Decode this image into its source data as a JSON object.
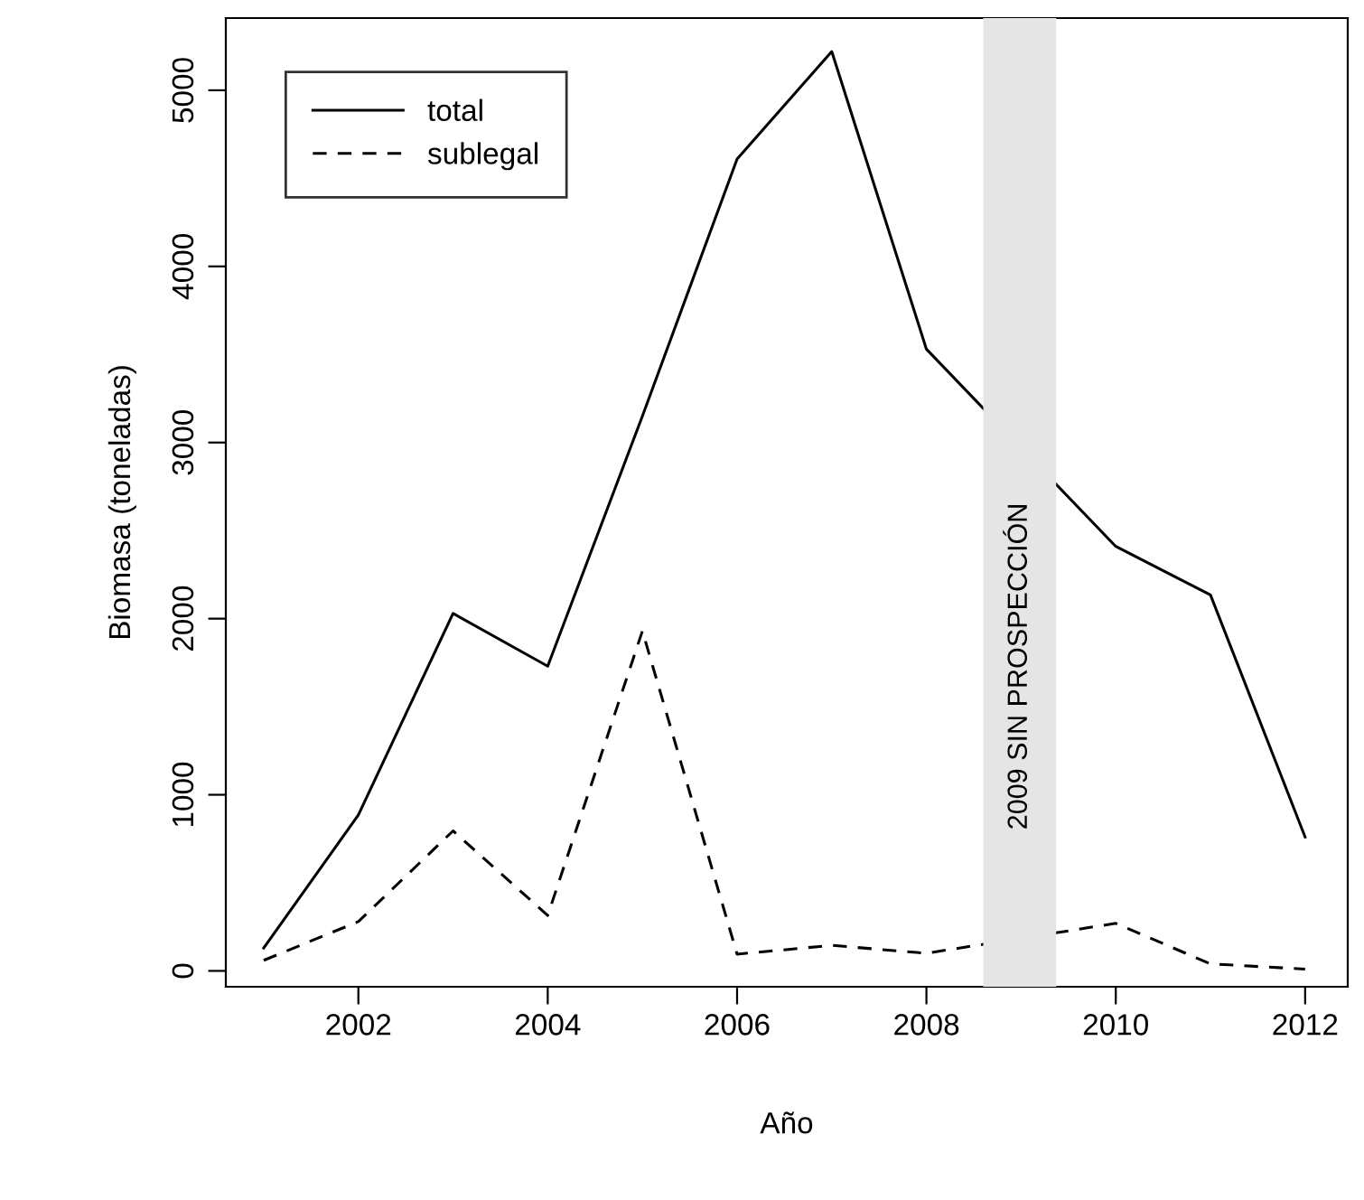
{
  "chart_data": {
    "type": "line",
    "xlabel": "Año",
    "ylabel": "Biomasa (toneladas)",
    "x": [
      2001,
      2002,
      2003,
      2004,
      2005,
      2006,
      2007,
      2008,
      2010,
      2011,
      2012
    ],
    "series": [
      {
        "name": "total",
        "color": "#000000",
        "line_style": "solid",
        "values": [
          130,
          885,
          2030,
          1730,
          3150,
          4610,
          5220,
          3530,
          2410,
          2135,
          760
        ]
      },
      {
        "name": "sublegal",
        "color": "#000000",
        "line_style": "dashed",
        "values": [
          60,
          280,
          795,
          315,
          1930,
          95,
          145,
          100,
          270,
          40,
          10
        ]
      }
    ],
    "xlim": [
      2000.6,
      2012.45
    ],
    "xticks": [
      2002,
      2004,
      2006,
      2008,
      2010,
      2012
    ],
    "ylim": [
      -90,
      5410
    ],
    "yticks": [
      0,
      1000,
      2000,
      3000,
      4000,
      5000
    ],
    "bands": [
      {
        "axis": "x",
        "from": 2008.6,
        "to": 2009.37,
        "label": "2009 SIN PROSPECCIÓN",
        "color": "#e5e5e5"
      }
    ],
    "grid": false,
    "legend": "top left",
    "marker": "none"
  }
}
